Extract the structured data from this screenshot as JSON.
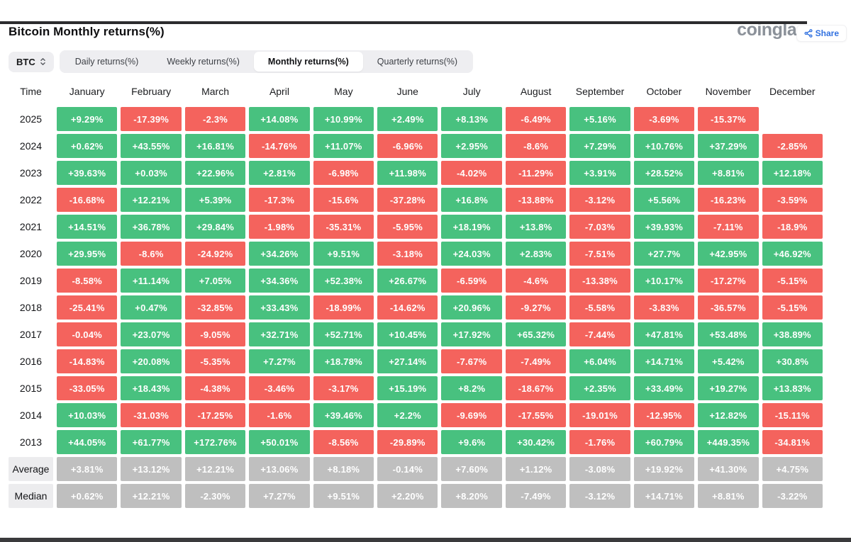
{
  "header": {
    "title": "Bitcoin Monthly returns(%)",
    "logo": "coinglass",
    "share_label": "Share"
  },
  "controls": {
    "coin": "BTC",
    "tabs": [
      {
        "label": "Daily returns(%)",
        "active": false
      },
      {
        "label": "Weekly returns(%)",
        "active": false
      },
      {
        "label": "Monthly returns(%)",
        "active": true
      },
      {
        "label": "Quarterly returns(%)",
        "active": false
      }
    ]
  },
  "colors": {
    "positive": "#48c17f",
    "negative": "#f4635d",
    "summary": "#bfbfbf",
    "accent_blue": "#3171e0",
    "logo_gray": "#8b9199"
  },
  "chart_data": {
    "type": "table",
    "title": "Bitcoin Monthly returns(%)",
    "columns": [
      "Time",
      "January",
      "February",
      "March",
      "April",
      "May",
      "June",
      "July",
      "August",
      "September",
      "October",
      "November",
      "December"
    ],
    "rows": [
      {
        "label": "2025",
        "summary": false,
        "values": [
          "+9.29%",
          "-17.39%",
          "-2.3%",
          "+14.08%",
          "+10.99%",
          "+2.49%",
          "+8.13%",
          "-6.49%",
          "+5.16%",
          "-3.69%",
          "-15.37%",
          null
        ]
      },
      {
        "label": "2024",
        "summary": false,
        "values": [
          "+0.62%",
          "+43.55%",
          "+16.81%",
          "-14.76%",
          "+11.07%",
          "-6.96%",
          "+2.95%",
          "-8.6%",
          "+7.29%",
          "+10.76%",
          "+37.29%",
          "-2.85%"
        ]
      },
      {
        "label": "2023",
        "summary": false,
        "values": [
          "+39.63%",
          "+0.03%",
          "+22.96%",
          "+2.81%",
          "-6.98%",
          "+11.98%",
          "-4.02%",
          "-11.29%",
          "+3.91%",
          "+28.52%",
          "+8.81%",
          "+12.18%"
        ]
      },
      {
        "label": "2022",
        "summary": false,
        "values": [
          "-16.68%",
          "+12.21%",
          "+5.39%",
          "-17.3%",
          "-15.6%",
          "-37.28%",
          "+16.8%",
          "-13.88%",
          "-3.12%",
          "+5.56%",
          "-16.23%",
          "-3.59%"
        ]
      },
      {
        "label": "2021",
        "summary": false,
        "values": [
          "+14.51%",
          "+36.78%",
          "+29.84%",
          "-1.98%",
          "-35.31%",
          "-5.95%",
          "+18.19%",
          "+13.8%",
          "-7.03%",
          "+39.93%",
          "-7.11%",
          "-18.9%"
        ]
      },
      {
        "label": "2020",
        "summary": false,
        "values": [
          "+29.95%",
          "-8.6%",
          "-24.92%",
          "+34.26%",
          "+9.51%",
          "-3.18%",
          "+24.03%",
          "+2.83%",
          "-7.51%",
          "+27.7%",
          "+42.95%",
          "+46.92%"
        ]
      },
      {
        "label": "2019",
        "summary": false,
        "values": [
          "-8.58%",
          "+11.14%",
          "+7.05%",
          "+34.36%",
          "+52.38%",
          "+26.67%",
          "-6.59%",
          "-4.6%",
          "-13.38%",
          "+10.17%",
          "-17.27%",
          "-5.15%"
        ]
      },
      {
        "label": "2018",
        "summary": false,
        "values": [
          "-25.41%",
          "+0.47%",
          "-32.85%",
          "+33.43%",
          "-18.99%",
          "-14.62%",
          "+20.96%",
          "-9.27%",
          "-5.58%",
          "-3.83%",
          "-36.57%",
          "-5.15%"
        ]
      },
      {
        "label": "2017",
        "summary": false,
        "values": [
          "-0.04%",
          "+23.07%",
          "-9.05%",
          "+32.71%",
          "+52.71%",
          "+10.45%",
          "+17.92%",
          "+65.32%",
          "-7.44%",
          "+47.81%",
          "+53.48%",
          "+38.89%"
        ]
      },
      {
        "label": "2016",
        "summary": false,
        "values": [
          "-14.83%",
          "+20.08%",
          "-5.35%",
          "+7.27%",
          "+18.78%",
          "+27.14%",
          "-7.67%",
          "-7.49%",
          "+6.04%",
          "+14.71%",
          "+5.42%",
          "+30.8%"
        ]
      },
      {
        "label": "2015",
        "summary": false,
        "values": [
          "-33.05%",
          "+18.43%",
          "-4.38%",
          "-3.46%",
          "-3.17%",
          "+15.19%",
          "+8.2%",
          "-18.67%",
          "+2.35%",
          "+33.49%",
          "+19.27%",
          "+13.83%"
        ]
      },
      {
        "label": "2014",
        "summary": false,
        "values": [
          "+10.03%",
          "-31.03%",
          "-17.25%",
          "-1.6%",
          "+39.46%",
          "+2.2%",
          "-9.69%",
          "-17.55%",
          "-19.01%",
          "-12.95%",
          "+12.82%",
          "-15.11%"
        ]
      },
      {
        "label": "2013",
        "summary": false,
        "values": [
          "+44.05%",
          "+61.77%",
          "+172.76%",
          "+50.01%",
          "-8.56%",
          "-29.89%",
          "+9.6%",
          "+30.42%",
          "-1.76%",
          "+60.79%",
          "+449.35%",
          "-34.81%"
        ]
      },
      {
        "label": "Average",
        "summary": true,
        "values": [
          "+3.81%",
          "+13.12%",
          "+12.21%",
          "+13.06%",
          "+8.18%",
          "-0.14%",
          "+7.60%",
          "+1.12%",
          "-3.08%",
          "+19.92%",
          "+41.30%",
          "+4.75%"
        ]
      },
      {
        "label": "Median",
        "summary": true,
        "values": [
          "+0.62%",
          "+12.21%",
          "-2.30%",
          "+7.27%",
          "+9.51%",
          "+2.20%",
          "+8.20%",
          "-7.49%",
          "-3.12%",
          "+14.71%",
          "+8.81%",
          "-3.22%"
        ]
      }
    ]
  }
}
